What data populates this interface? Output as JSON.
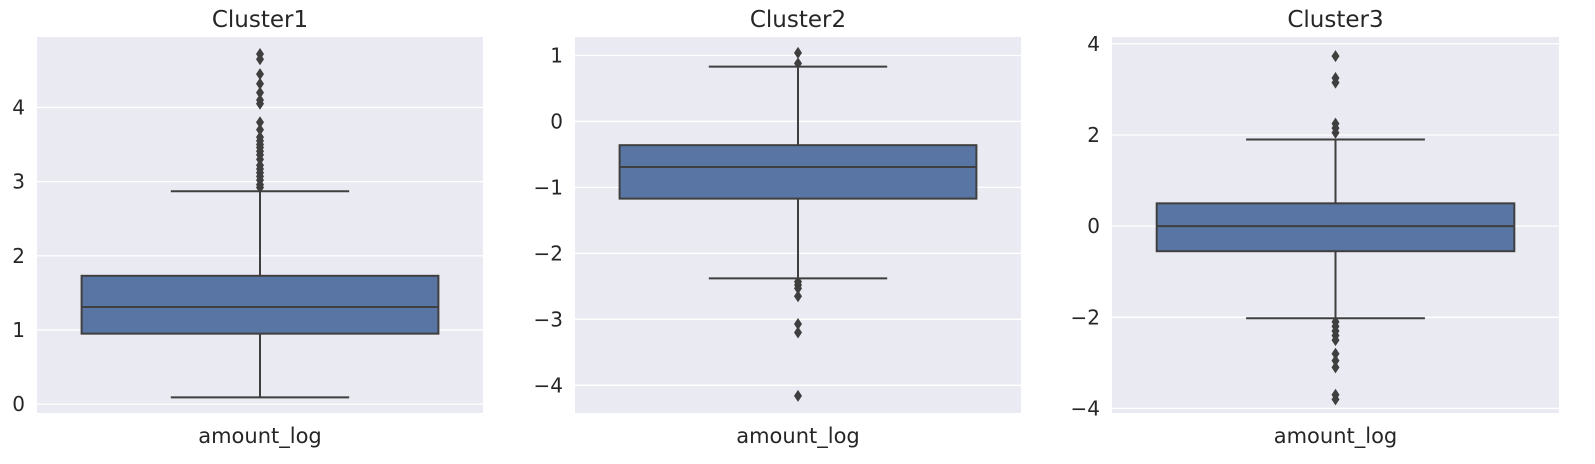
{
  "chart_data": [
    {
      "type": "box",
      "title": "Cluster1",
      "xlabel": "amount_log",
      "ylim": [
        -0.12,
        4.95
      ],
      "yticks": [
        0,
        1,
        2,
        3,
        4
      ],
      "box": {
        "q1": 0.95,
        "median": 1.31,
        "q3": 1.73,
        "whisker_low": 0.09,
        "whisker_high": 2.87
      },
      "outliers": [
        2.92,
        2.96,
        3.02,
        3.07,
        3.12,
        3.17,
        3.22,
        3.3,
        3.36,
        3.41,
        3.46,
        3.5,
        3.55,
        3.6,
        3.7,
        3.8,
        4.05,
        4.1,
        4.2,
        4.32,
        4.45,
        4.65,
        4.72
      ]
    },
    {
      "type": "box",
      "title": "Cluster2",
      "xlabel": "amount_log",
      "ylim": [
        -4.42,
        1.28
      ],
      "yticks": [
        1,
        0,
        -1,
        -2,
        -3,
        -4
      ],
      "box": {
        "q1": -1.17,
        "median": -0.69,
        "q3": -0.36,
        "whisker_low": -2.38,
        "whisker_high": 0.83
      },
      "outliers": [
        0.88,
        1.04,
        -2.43,
        -2.48,
        -2.53,
        -2.65,
        -3.07,
        -3.2,
        -4.16
      ]
    },
    {
      "type": "box",
      "title": "Cluster3",
      "xlabel": "amount_log",
      "ylim": [
        -4.1,
        4.15
      ],
      "yticks": [
        4,
        2,
        0,
        -2,
        -4
      ],
      "box": {
        "q1": -0.55,
        "median": 0.0,
        "q3": 0.5,
        "whisker_low": -2.02,
        "whisker_high": 1.9
      },
      "outliers": [
        2.05,
        2.15,
        2.25,
        3.15,
        3.25,
        3.73,
        -2.1,
        -2.2,
        -2.3,
        -2.4,
        -2.5,
        -2.8,
        -2.95,
        -3.1,
        -3.7,
        -3.8
      ]
    }
  ],
  "colors": {
    "background": "#EAEAF2",
    "grid": "#ffffff",
    "box_fill": "#5875A4",
    "line": "#3F3F3F",
    "text": "#262626"
  }
}
